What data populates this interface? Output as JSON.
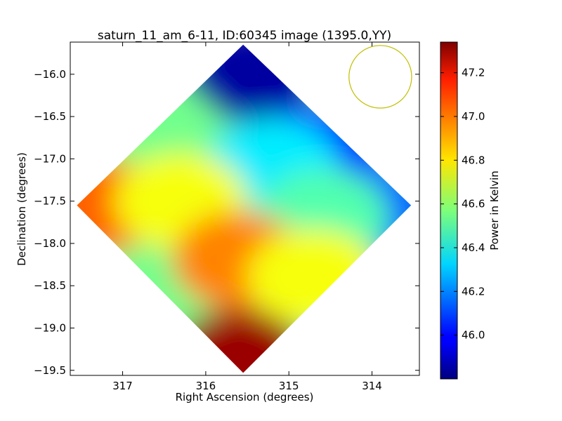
{
  "chart_data": {
    "type": "heatmap",
    "title": "saturn_11_am_6-11, ID:60345 image (1395.0,YY)",
    "xlabel": "Right Ascension (degrees)",
    "ylabel": "Declination (degrees)",
    "colorbar_label": "Power in Kelvin",
    "x_axis_inverted": true,
    "xlim": [
      317.63,
      313.43
    ],
    "ylim": [
      -19.56,
      -15.62
    ],
    "x_ticks": [
      317,
      316,
      315,
      314
    ],
    "x_tick_labels": [
      "317",
      "316",
      "315",
      "314"
    ],
    "y_ticks": [
      -16.0,
      -16.5,
      -17.0,
      -17.5,
      -18.0,
      -18.5,
      -19.0,
      -19.5
    ],
    "y_tick_labels": [
      "−16.0",
      "−16.5",
      "−17.0",
      "−17.5",
      "−18.0",
      "−18.5",
      "−19.0",
      "−19.5"
    ],
    "colormap": "jet",
    "color_range": [
      45.8,
      47.34
    ],
    "colorbar_ticks": [
      46.0,
      46.2,
      46.4,
      46.6,
      46.8,
      47.0,
      47.2
    ],
    "colorbar_tick_labels": [
      "46.0",
      "46.2",
      "46.4",
      "46.6",
      "46.8",
      "47.0",
      "47.2"
    ],
    "footprint": {
      "shape": "rotated square",
      "corners": [
        {
          "name": "top",
          "ra": 315.55,
          "dec": -15.65
        },
        {
          "name": "right",
          "ra": 313.53,
          "dec": -17.55
        },
        {
          "name": "bottom",
          "ra": 315.55,
          "dec": -19.53
        },
        {
          "name": "left",
          "ra": 317.55,
          "dec": -17.55
        }
      ]
    },
    "regions": [
      {
        "name": "north",
        "ra": 315.45,
        "dec": -16.0,
        "value": 45.85
      },
      {
        "name": "north-east edge",
        "ra": 316.6,
        "dec": -16.7,
        "value": 46.55
      },
      {
        "name": "north-west",
        "ra": 314.6,
        "dec": -16.9,
        "value": 46.05
      },
      {
        "name": "center-north",
        "ra": 315.2,
        "dec": -17.1,
        "value": 46.35
      },
      {
        "name": "west",
        "ra": 313.9,
        "dec": -17.6,
        "value": 46.15
      },
      {
        "name": "center-west",
        "ra": 314.6,
        "dec": -17.7,
        "value": 46.5
      },
      {
        "name": "east",
        "ra": 317.3,
        "dec": -17.55,
        "value": 47.0
      },
      {
        "name": "center-east",
        "ra": 316.3,
        "dec": -17.5,
        "value": 46.75
      },
      {
        "name": "south-center",
        "ra": 315.6,
        "dec": -18.2,
        "value": 46.95
      },
      {
        "name": "south-west",
        "ra": 314.7,
        "dec": -18.4,
        "value": 46.75
      },
      {
        "name": "south",
        "ra": 315.6,
        "dec": -19.35,
        "value": 47.3
      }
    ],
    "beam_marker": {
      "shape": "circle",
      "color": "#bfbf00",
      "ra": 313.9,
      "dec": -16.03,
      "radius_deg": 0.37
    },
    "grid": false,
    "legend": "none"
  }
}
